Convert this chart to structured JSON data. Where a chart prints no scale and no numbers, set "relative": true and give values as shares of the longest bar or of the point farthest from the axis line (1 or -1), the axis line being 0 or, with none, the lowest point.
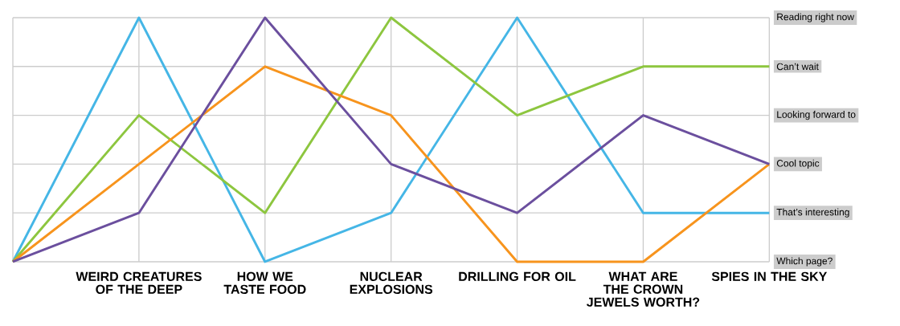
{
  "chart_data": {
    "type": "line",
    "relative": true,
    "categories": [
      null,
      "WEIRD CREATURES OF THE DEEP",
      "HOW WE TASTE FOOD",
      "NUCLEAR EXPLOSIONS",
      "DRILLING FOR OIL",
      "WHAT ARE THE CROWN JEWELS WORTH?",
      "SPIES IN THE SKY"
    ],
    "series": [
      {
        "color": "#45b6e6",
        "values": [
          0,
          1,
          0,
          0.2,
          1,
          0.2,
          0.2
        ]
      },
      {
        "color": "#8dc63f",
        "values": [
          0,
          0.6,
          0.2,
          1,
          0.6,
          0.8,
          0.8
        ]
      },
      {
        "color": "#f7941d",
        "values": [
          0,
          0.4,
          0.8,
          0.6,
          0,
          0,
          0.4
        ]
      },
      {
        "color": "#6b4f9e",
        "values": [
          0,
          0.2,
          1,
          0.4,
          0.2,
          0.6,
          0.4
        ]
      }
    ],
    "annotations": [
      "Which page?",
      "That’s interesting",
      "Cool topic",
      "Looking forward to",
      "Can’t wait",
      "Reading right now"
    ],
    "grid": true,
    "marker": "none",
    "line_style": "solid"
  }
}
